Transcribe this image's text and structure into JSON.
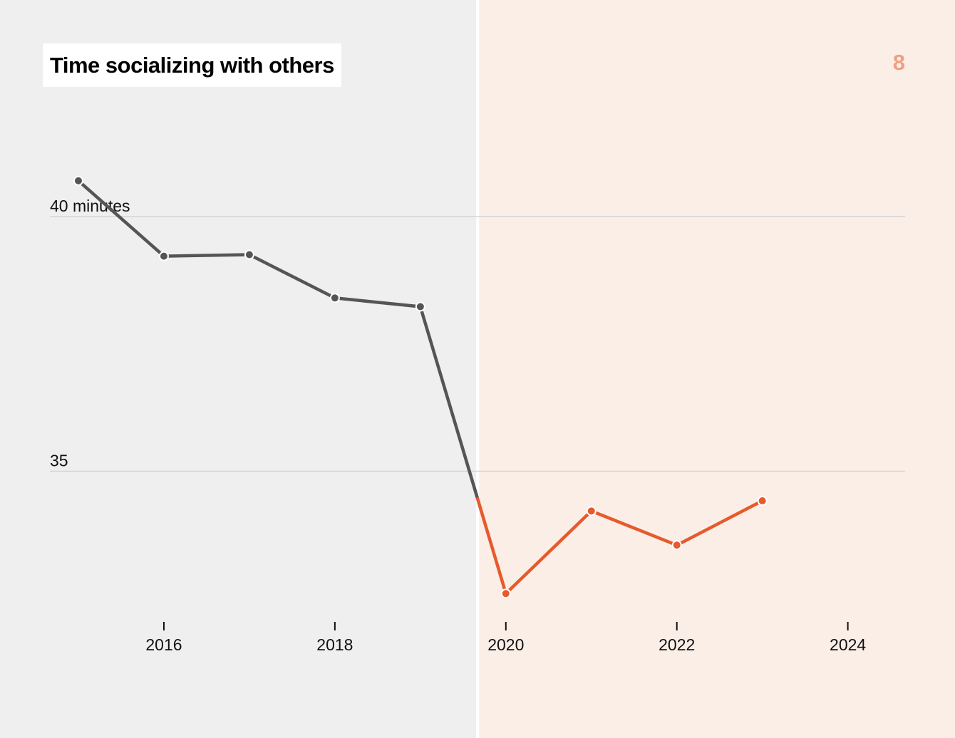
{
  "title": "Time socializing with others",
  "panel_number": "8",
  "colors": {
    "background": "#efefef",
    "highlight_region": "#fbeee7",
    "divider": "#ffffff",
    "gridline": "#d4d4d4",
    "pre_series": "#555555",
    "post_series": "#e65a2c",
    "panel_number": "#f0a080"
  },
  "chart_data": {
    "type": "line",
    "title": "Time socializing with others",
    "xlabel": "",
    "ylabel": "",
    "x_ticks": [
      2016,
      2018,
      2020,
      2022,
      2024
    ],
    "y_ticks": [
      {
        "value": 40,
        "label": "40 minutes"
      },
      {
        "value": 35,
        "label": "35"
      }
    ],
    "xlim": [
      2015,
      2024.67
    ],
    "ylim": [
      32.1,
      42.5
    ],
    "highlight_from": 2019.67,
    "grid": "horizontal",
    "series": [
      {
        "x": [
          2015,
          2016,
          2017,
          2018,
          2019,
          2020,
          2021,
          2022,
          2023
        ],
        "y": [
          40.7,
          39.22,
          39.25,
          38.4,
          38.23,
          32.6,
          34.22,
          33.55,
          34.42
        ]
      }
    ]
  }
}
